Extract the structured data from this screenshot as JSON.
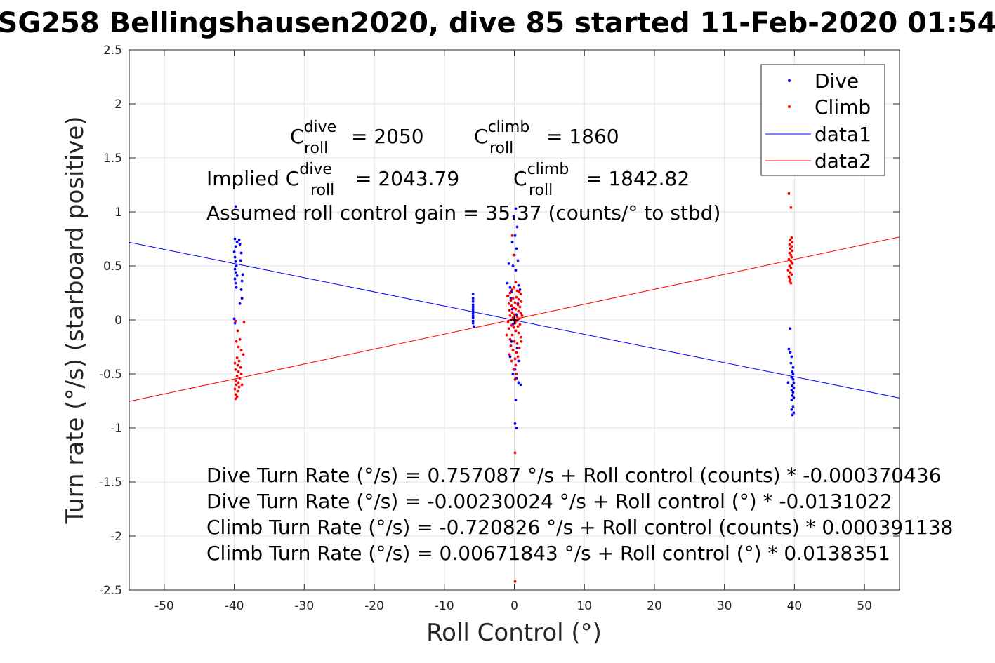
{
  "chart_data": {
    "type": "scatter",
    "title": "SG258 Bellingshausen2020, dive 85 started 11-Feb-2020 01:54",
    "xlabel": "Roll Control (°)",
    "ylabel": "Turn rate (°/s) (starboard positive)",
    "xlim": [
      -55,
      55
    ],
    "ylim": [
      -2.5,
      2.5
    ],
    "x_ticks": [
      -50,
      -40,
      -30,
      -20,
      -10,
      0,
      10,
      20,
      30,
      40,
      50
    ],
    "y_ticks": [
      -2.5,
      -2,
      -1.5,
      -1,
      -0.5,
      0,
      0.5,
      1,
      1.5,
      2,
      2.5
    ],
    "grid": true,
    "legend_position": "top-right",
    "legend": [
      "Dive",
      "Climb",
      "data1",
      "data2"
    ],
    "colors": {
      "dive": "#0000ff",
      "climb": "#ff0000"
    },
    "series": [
      {
        "name": "Dive",
        "type": "scatter",
        "color": "#0000ff",
        "points": [
          [
            -39.8,
            1.05
          ],
          [
            -39.9,
            0.75
          ],
          [
            -39.6,
            0.72
          ],
          [
            -39.8,
            0.68
          ],
          [
            -40.0,
            0.63
          ],
          [
            -39.9,
            0.58
          ],
          [
            -39.8,
            0.54
          ],
          [
            -39.7,
            0.5
          ],
          [
            -39.9,
            0.47
          ],
          [
            -39.8,
            0.44
          ],
          [
            -39.6,
            0.41
          ],
          [
            -39.9,
            0.38
          ],
          [
            -39.8,
            0.34
          ],
          [
            -39.7,
            0.3
          ],
          [
            -39.3,
            0.74
          ],
          [
            -39.2,
            0.7
          ],
          [
            -39.0,
            0.62
          ],
          [
            -39.1,
            0.55
          ],
          [
            -38.8,
            0.42
          ],
          [
            -38.9,
            0.36
          ],
          [
            -39.0,
            0.28
          ],
          [
            -38.9,
            0.2
          ],
          [
            -39.2,
            0.15
          ],
          [
            -40.0,
            0.01
          ],
          [
            -39.9,
            -0.03
          ],
          [
            -5.9,
            0.24
          ],
          [
            -5.9,
            0.2
          ],
          [
            -5.9,
            0.17
          ],
          [
            -5.9,
            0.14
          ],
          [
            -5.9,
            0.12
          ],
          [
            -5.9,
            0.1
          ],
          [
            -5.9,
            0.08
          ],
          [
            -5.9,
            0.06
          ],
          [
            -5.9,
            0.04
          ],
          [
            -5.9,
            0.02
          ],
          [
            -5.9,
            -0.01
          ],
          [
            -5.9,
            -0.03
          ],
          [
            -5.8,
            -0.06
          ],
          [
            0.2,
            1.03
          ],
          [
            -0.1,
            0.96
          ],
          [
            0.4,
            0.86
          ],
          [
            0.1,
            0.78
          ],
          [
            -0.3,
            0.72
          ],
          [
            0.3,
            0.66
          ],
          [
            0.0,
            0.6
          ],
          [
            0.5,
            0.55
          ],
          [
            -0.2,
            0.5
          ],
          [
            0.2,
            0.46
          ],
          [
            -0.8,
            0.52
          ],
          [
            -1.0,
            0.34
          ],
          [
            -0.6,
            0.3
          ],
          [
            -0.4,
            0.26
          ],
          [
            0.6,
            0.32
          ],
          [
            0.8,
            0.28
          ],
          [
            -0.5,
            0.2
          ],
          [
            0.5,
            0.15
          ],
          [
            -0.3,
            0.1
          ],
          [
            0.3,
            0.05
          ],
          [
            0.0,
            0.0
          ],
          [
            -0.2,
            -0.04
          ],
          [
            0.2,
            -0.1
          ],
          [
            -0.4,
            -0.2
          ],
          [
            0.4,
            -0.26
          ],
          [
            -0.6,
            -0.34
          ],
          [
            0.6,
            -0.38
          ],
          [
            0.1,
            -0.46
          ],
          [
            -0.2,
            -0.5
          ],
          [
            0.3,
            -0.54
          ],
          [
            0.6,
            -0.58
          ],
          [
            0.9,
            -0.6
          ],
          [
            0.2,
            -0.74
          ],
          [
            0.1,
            -0.96
          ],
          [
            0.3,
            -1.0
          ],
          [
            39.4,
            -0.08
          ],
          [
            39.2,
            -0.27
          ],
          [
            39.4,
            -0.3
          ],
          [
            39.6,
            -0.34
          ],
          [
            39.5,
            -0.4
          ],
          [
            39.8,
            -0.44
          ],
          [
            39.7,
            -0.48
          ],
          [
            39.8,
            -0.5
          ],
          [
            39.6,
            -0.53
          ],
          [
            39.8,
            -0.55
          ],
          [
            39.9,
            -0.58
          ],
          [
            39.7,
            -0.61
          ],
          [
            39.9,
            -0.63
          ],
          [
            39.6,
            -0.65
          ],
          [
            39.8,
            -0.67
          ],
          [
            39.7,
            -0.7
          ],
          [
            39.9,
            -0.72
          ],
          [
            39.6,
            -0.74
          ],
          [
            39.8,
            -0.8
          ],
          [
            39.6,
            -0.83
          ],
          [
            39.9,
            -0.86
          ],
          [
            39.7,
            -0.88
          ],
          [
            39.1,
            -0.58
          ]
        ]
      },
      {
        "name": "Climb",
        "type": "scatter",
        "color": "#ff0000",
        "points": [
          [
            -39.8,
            -0.01
          ],
          [
            -39.5,
            -0.1
          ],
          [
            -39.2,
            -0.18
          ],
          [
            -39.7,
            -0.2
          ],
          [
            -39.4,
            -0.25
          ],
          [
            -39.0,
            -0.28
          ],
          [
            -38.7,
            -0.32
          ],
          [
            -39.6,
            -0.35
          ],
          [
            -39.3,
            -0.38
          ],
          [
            -39.9,
            -0.4
          ],
          [
            -39.5,
            -0.42
          ],
          [
            -39.1,
            -0.44
          ],
          [
            -39.8,
            -0.46
          ],
          [
            -39.4,
            -0.48
          ],
          [
            -39.0,
            -0.5
          ],
          [
            -39.6,
            -0.52
          ],
          [
            -39.2,
            -0.54
          ],
          [
            -39.8,
            -0.56
          ],
          [
            -39.4,
            -0.58
          ],
          [
            -39.7,
            -0.6
          ],
          [
            -39.3,
            -0.62
          ],
          [
            -39.9,
            -0.64
          ],
          [
            -39.5,
            -0.66
          ],
          [
            -39.8,
            -0.69
          ],
          [
            -39.6,
            -0.71
          ],
          [
            -39.8,
            -0.73
          ],
          [
            -38.6,
            -0.02
          ],
          [
            -38.9,
            -0.6
          ],
          [
            0.2,
            0.35
          ],
          [
            0.0,
            0.3
          ],
          [
            -0.3,
            0.28
          ],
          [
            0.4,
            0.27
          ],
          [
            0.7,
            0.26
          ],
          [
            -0.6,
            0.25
          ],
          [
            0.9,
            0.24
          ],
          [
            -0.9,
            0.22
          ],
          [
            0.3,
            0.21
          ],
          [
            -0.2,
            0.2
          ],
          [
            0.6,
            0.19
          ],
          [
            -0.5,
            0.18
          ],
          [
            1.0,
            0.17
          ],
          [
            0.1,
            0.16
          ],
          [
            -0.8,
            0.15
          ],
          [
            0.5,
            0.14
          ],
          [
            -0.4,
            0.13
          ],
          [
            0.8,
            0.12
          ],
          [
            -0.1,
            0.11
          ],
          [
            0.2,
            0.1
          ],
          [
            -0.7,
            0.09
          ],
          [
            0.6,
            0.08
          ],
          [
            -0.3,
            0.07
          ],
          [
            0.9,
            0.06
          ],
          [
            0.0,
            0.05
          ],
          [
            -0.6,
            0.04
          ],
          [
            0.4,
            0.03
          ],
          [
            -0.2,
            0.02
          ],
          [
            0.7,
            0.01
          ],
          [
            -0.5,
            0.0
          ],
          [
            0.3,
            -0.01
          ],
          [
            -0.9,
            -0.02
          ],
          [
            0.1,
            -0.03
          ],
          [
            0.8,
            -0.04
          ],
          [
            -0.4,
            -0.05
          ],
          [
            0.5,
            -0.06
          ],
          [
            -0.1,
            -0.07
          ],
          [
            -0.8,
            -0.08
          ],
          [
            0.2,
            -0.1
          ],
          [
            0.6,
            -0.12
          ],
          [
            -0.3,
            -0.14
          ],
          [
            0.9,
            -0.16
          ],
          [
            -0.6,
            -0.18
          ],
          [
            0.0,
            -0.2
          ],
          [
            0.4,
            -0.22
          ],
          [
            -0.5,
            -0.24
          ],
          [
            0.7,
            -0.26
          ],
          [
            -0.2,
            -0.28
          ],
          [
            0.3,
            -0.3
          ],
          [
            -0.7,
            -0.32
          ],
          [
            0.5,
            -0.34
          ],
          [
            0.1,
            -0.36
          ],
          [
            -0.4,
            -0.38
          ],
          [
            0.2,
            -0.42
          ],
          [
            -0.1,
            -0.46
          ],
          [
            0.3,
            -0.5
          ],
          [
            0.1,
            -0.55
          ],
          [
            -1.0,
            0.22
          ],
          [
            -1.1,
            -0.14
          ],
          [
            1.1,
            0.04
          ],
          [
            1.0,
            -0.2
          ],
          [
            -0.3,
            0.78
          ],
          [
            -0.1,
            0.6
          ],
          [
            0.1,
            -1.23
          ],
          [
            0.1,
            -2.42
          ],
          [
            39.2,
            1.17
          ],
          [
            39.5,
            1.04
          ],
          [
            39.6,
            0.76
          ],
          [
            39.4,
            0.74
          ],
          [
            39.7,
            0.72
          ],
          [
            39.3,
            0.7
          ],
          [
            39.6,
            0.68
          ],
          [
            39.4,
            0.66
          ],
          [
            39.7,
            0.64
          ],
          [
            39.3,
            0.62
          ],
          [
            39.5,
            0.6
          ],
          [
            39.6,
            0.58
          ],
          [
            39.2,
            0.56
          ],
          [
            39.5,
            0.54
          ],
          [
            39.7,
            0.52
          ],
          [
            39.3,
            0.5
          ],
          [
            39.5,
            0.48
          ],
          [
            39.1,
            0.46
          ],
          [
            39.4,
            0.44
          ],
          [
            39.6,
            0.42
          ],
          [
            39.2,
            0.4
          ],
          [
            39.4,
            0.38
          ],
          [
            39.3,
            0.36
          ],
          [
            39.5,
            0.34
          ]
        ]
      },
      {
        "name": "data1",
        "type": "line",
        "color": "#0000ff",
        "x": [
          -55,
          55
        ],
        "y": [
          0.7183,
          -0.7229
        ]
      },
      {
        "name": "data2",
        "type": "line",
        "color": "#ff0000",
        "x": [
          -55,
          55
        ],
        "y": [
          -0.7542,
          0.7677
        ]
      }
    ],
    "marker": {
      "x": 0,
      "y": 0,
      "symbol": "+"
    },
    "annotations": {
      "c_dive": {
        "c": "C",
        "sup": "dive",
        "sub": "roll",
        "value": "= 2050"
      },
      "c_climb": {
        "c": "C",
        "sup": "climb",
        "sub": "roll",
        "value": "= 1860"
      },
      "implied_prefix": "Implied C",
      "implied_dive": {
        "sup": "dive",
        "sub": "roll",
        "value": "= 2043.79"
      },
      "implied_climb": {
        "c": "C",
        "sup": "climb",
        "sub": "roll",
        "value": "= 1842.82"
      },
      "gain": "Assumed roll control gain = 35.37 (counts/° to stbd)",
      "eq1": "Dive Turn Rate (°/s) = 0.757087 °/s + Roll control (counts) * -0.000370436",
      "eq2": "Dive Turn Rate (°/s) = -0.00230024 °/s + Roll control (°) * -0.0131022",
      "eq3": "Climb Turn Rate (°/s) = -0.720826 °/s + Roll control (counts) * 0.000391138",
      "eq4": "Climb Turn Rate (°/s) = 0.00671843 °/s + Roll control (°) * 0.0138351"
    }
  }
}
